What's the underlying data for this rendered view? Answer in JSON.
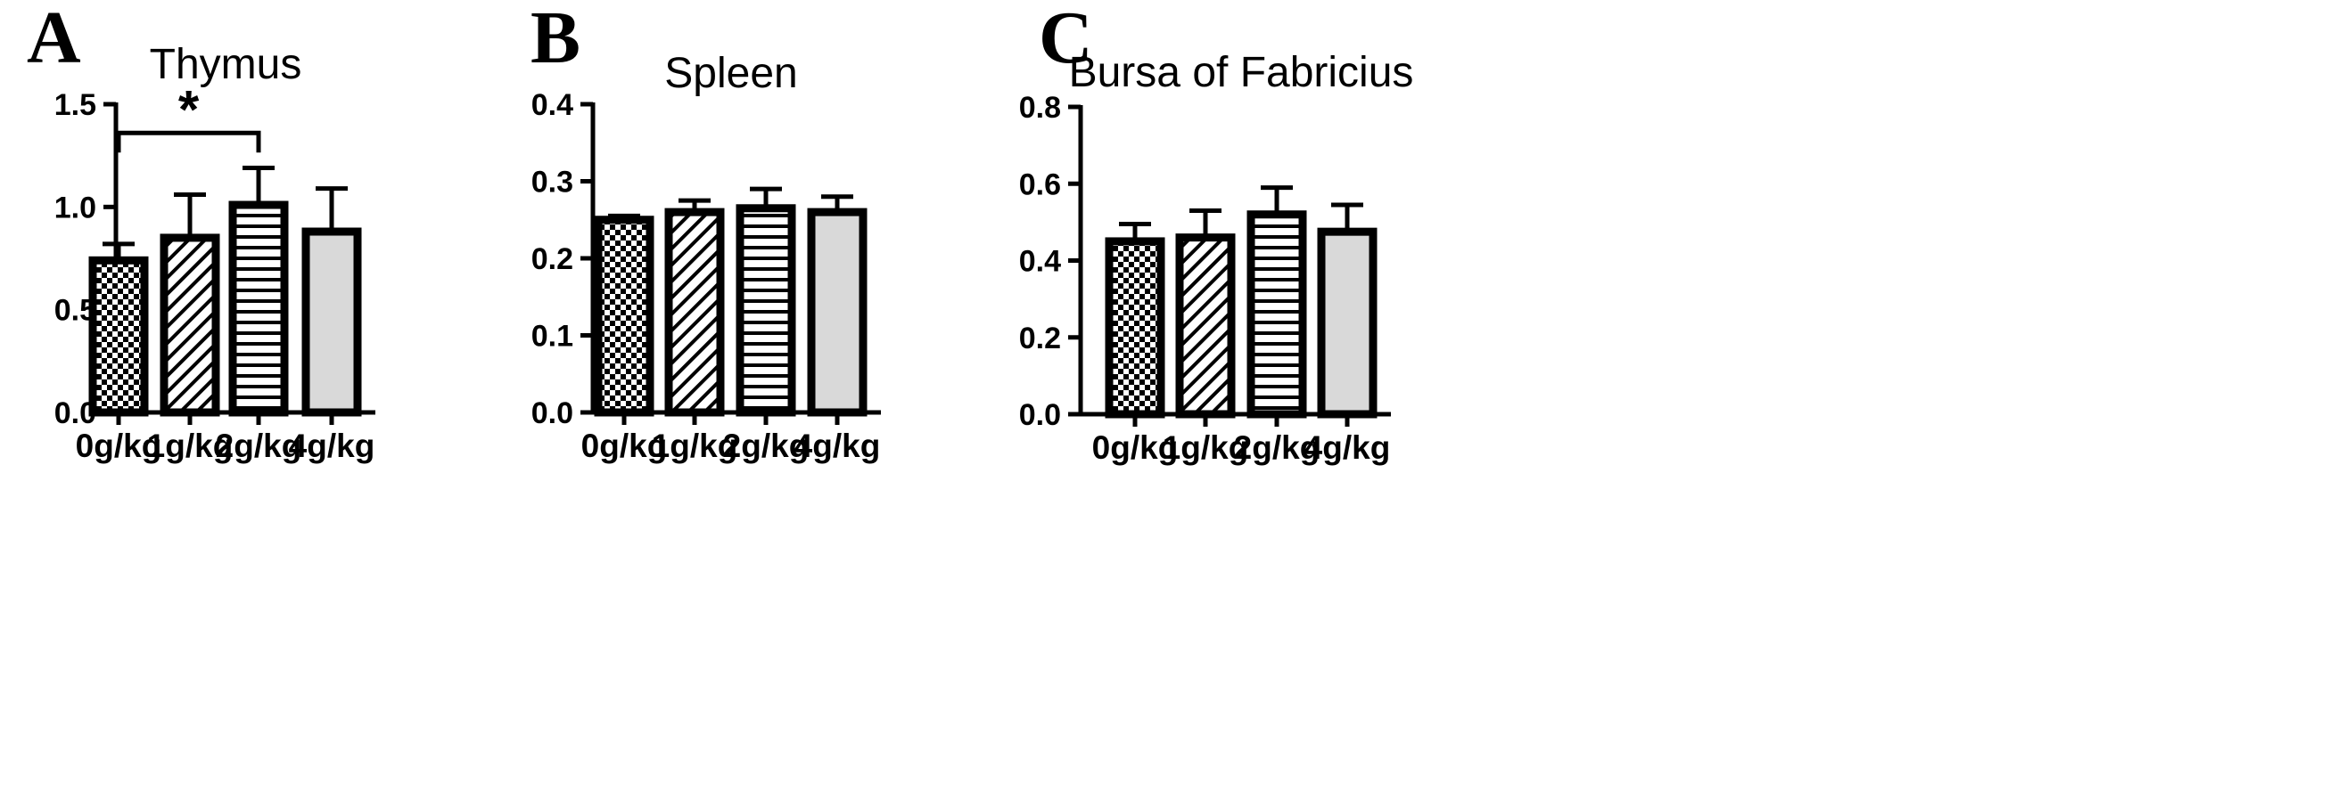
{
  "chart_data": [
    {
      "panel": "A",
      "type": "bar",
      "title": "Thymus",
      "categories": [
        "0g/kg",
        "1g/kg",
        "2g/kg",
        "4g/kg"
      ],
      "series": [
        {
          "values": [
            0.74,
            0.85,
            1.01,
            0.88
          ],
          "errors": [
            0.08,
            0.21,
            0.18,
            0.21
          ]
        }
      ],
      "ylim": [
        0,
        1.5
      ],
      "yticks": [
        "0.0",
        "0.5",
        "1.0",
        "1.5"
      ],
      "significance": [
        {
          "from": 0,
          "to": 2,
          "label": "*",
          "y": 1.36
        }
      ],
      "bar_fills": [
        "checker",
        "diagonal",
        "horizontal",
        "solid"
      ],
      "xlabel": "",
      "ylabel": ""
    },
    {
      "panel": "B",
      "type": "bar",
      "title": "Spleen",
      "categories": [
        "0g/kg",
        "1g/kg",
        "2g/kg",
        "4g/kg"
      ],
      "series": [
        {
          "values": [
            0.25,
            0.26,
            0.265,
            0.26
          ],
          "errors": [
            0.005,
            0.015,
            0.025,
            0.02
          ]
        }
      ],
      "ylim": [
        0,
        0.4
      ],
      "yticks": [
        "0.0",
        "0.1",
        "0.2",
        "0.3",
        "0.4"
      ],
      "significance": [],
      "bar_fills": [
        "checker",
        "diagonal",
        "horizontal",
        "solid"
      ],
      "xlabel": "",
      "ylabel": ""
    },
    {
      "panel": "C",
      "type": "bar",
      "title": "Bursa of Fabricius",
      "categories": [
        "0g/kg",
        "1g/kg",
        "2g/kg",
        "4g/kg"
      ],
      "series": [
        {
          "values": [
            0.45,
            0.46,
            0.52,
            0.475
          ],
          "errors": [
            0.045,
            0.07,
            0.07,
            0.07
          ]
        }
      ],
      "ylim": [
        0,
        0.8
      ],
      "yticks": [
        "0.0",
        "0.2",
        "0.4",
        "0.6",
        "0.8"
      ],
      "significance": [],
      "bar_fills": [
        "checker",
        "diagonal",
        "horizontal",
        "solid"
      ],
      "xlabel": "",
      "ylabel": ""
    }
  ],
  "colors": {
    "bar_stroke": "#000000",
    "solid_fill": "#d9d9d9",
    "background": "#ffffff"
  }
}
